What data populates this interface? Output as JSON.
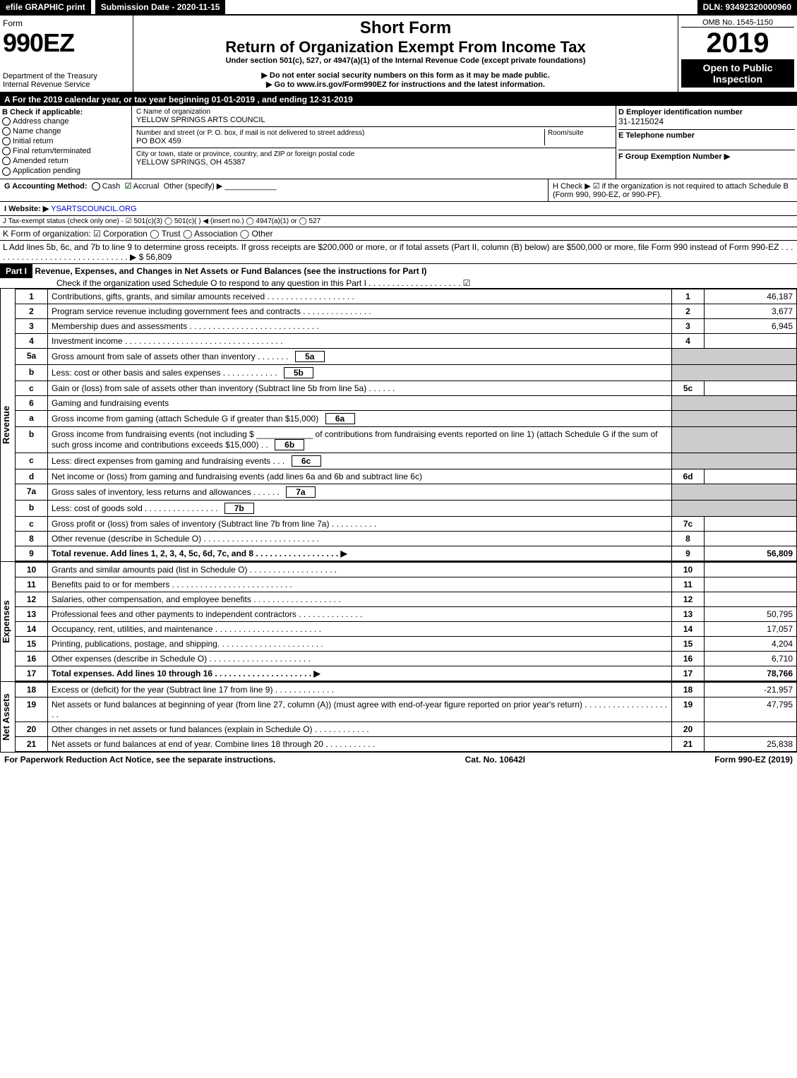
{
  "top_bar": {
    "efile": "efile GRAPHIC print",
    "submission_label": "Submission Date - 2020-11-15",
    "dln": "DLN: 93492320000960"
  },
  "header": {
    "form_word": "Form",
    "form_number": "990EZ",
    "dept": "Department of the Treasury",
    "irs": "Internal Revenue Service",
    "short_form": "Short Form",
    "title": "Return of Organization Exempt From Income Tax",
    "subtitle": "Under section 501(c), 527, or 4947(a)(1) of the Internal Revenue Code (except private foundations)",
    "warn": "▶ Do not enter social security numbers on this form as it may be made public.",
    "goto": "▶ Go to www.irs.gov/Form990EZ for instructions and the latest information.",
    "omb": "OMB No. 1545-1150",
    "year": "2019",
    "inspection": "Open to Public Inspection"
  },
  "tax_year": "A For the 2019 calendar year, or tax year beginning 01-01-2019 , and ending 12-31-2019",
  "box_b": {
    "label": "B  Check if applicable:",
    "opts": [
      "Address change",
      "Name change",
      "Initial return",
      "Final return/terminated",
      "Amended return",
      "Application pending"
    ]
  },
  "box_c": {
    "name_label": "C Name of organization",
    "name": "YELLOW SPRINGS ARTS COUNCIL",
    "addr_label": "Number and street (or P. O. box, if mail is not delivered to street address)",
    "room_label": "Room/suite",
    "addr": "PO BOX 459",
    "city_label": "City or town, state or province, country, and ZIP or foreign postal code",
    "city": "YELLOW SPRINGS, OH  45387"
  },
  "box_d": {
    "label": "D Employer identification number",
    "ein": "31-1215024",
    "e_label": "E Telephone number",
    "f_label": "F Group Exemption Number  ▶"
  },
  "row_g": {
    "g": "G Accounting Method:",
    "cash": "Cash",
    "accrual": "Accrual",
    "other": "Other (specify) ▶",
    "h": "H  Check ▶ ☑ if the organization is not required to attach Schedule B (Form 990, 990-EZ, or 990-PF)."
  },
  "row_i": {
    "label": "I Website: ▶",
    "site": "YSARTSCOUNCIL.ORG"
  },
  "row_j": "J Tax-exempt status (check only one) - ☑ 501(c)(3)  ◯ 501(c)(  ) ◀ (insert no.)  ◯ 4947(a)(1) or  ◯ 527",
  "row_k": "K Form of organization:  ☑ Corporation  ◯ Trust  ◯ Association  ◯ Other",
  "row_l": {
    "text": "L Add lines 5b, 6c, and 7b to line 9 to determine gross receipts. If gross receipts are $200,000 or more, or if total assets (Part II, column (B) below) are $500,000 or more, file Form 990 instead of Form 990-EZ  . . . . . . . . . . . . . . . . . . . . . . . . . . . . . . ▶",
    "amount": "$ 56,809"
  },
  "part1": {
    "label": "Part I",
    "title": "Revenue, Expenses, and Changes in Net Assets or Fund Balances (see the instructions for Part I)",
    "check": "Check if the organization used Schedule O to respond to any question in this Part I . . . . . . . . . . . . . . . . . . . . ☑"
  },
  "sections": {
    "revenue": "Revenue",
    "expenses": "Expenses",
    "net": "Net Assets"
  },
  "lines": [
    {
      "n": "1",
      "d": "Contributions, gifts, grants, and similar amounts received . . . . . . . . . . . . . . . . . . .",
      "r": "1",
      "v": "46,187"
    },
    {
      "n": "2",
      "d": "Program service revenue including government fees and contracts . . . . . . . . . . . . . . .",
      "r": "2",
      "v": "3,677"
    },
    {
      "n": "3",
      "d": "Membership dues and assessments . . . . . . . . . . . . . . . . . . . . . . . . . . . .",
      "r": "3",
      "v": "6,945"
    },
    {
      "n": "4",
      "d": "Investment income . . . . . . . . . . . . . . . . . . . . . . . . . . . . . . . . . .",
      "r": "4",
      "v": ""
    },
    {
      "n": "5a",
      "d": "Gross amount from sale of assets other than inventory . . . . . . .",
      "sub": "5a",
      "grey": true
    },
    {
      "n": "b",
      "d": "Less: cost or other basis and sales expenses . . . . . . . . . . . .",
      "sub": "5b",
      "grey": true
    },
    {
      "n": "c",
      "d": "Gain or (loss) from sale of assets other than inventory (Subtract line 5b from line 5a) . . . . . .",
      "r": "5c",
      "v": ""
    },
    {
      "n": "6",
      "d": "Gaming and fundraising events",
      "grey": true,
      "noamt": true
    },
    {
      "n": "a",
      "d": "Gross income from gaming (attach Schedule G if greater than $15,000)",
      "sub": "6a",
      "grey": true
    },
    {
      "n": "b",
      "d": "Gross income from fundraising events (not including $ ____________ of contributions from fundraising events reported on line 1) (attach Schedule G if the sum of such gross income and contributions exceeds $15,000)    . .",
      "sub": "6b",
      "grey": true
    },
    {
      "n": "c",
      "d": "Less: direct expenses from gaming and fundraising events     . . .",
      "sub": "6c",
      "grey": true
    },
    {
      "n": "d",
      "d": "Net income or (loss) from gaming and fundraising events (add lines 6a and 6b and subtract line 6c)",
      "r": "6d",
      "v": ""
    },
    {
      "n": "7a",
      "d": "Gross sales of inventory, less returns and allowances . . . . . .",
      "sub": "7a",
      "grey": true
    },
    {
      "n": "b",
      "d": "Less: cost of goods sold       . . . . . . . . . . . . . . . .",
      "sub": "7b",
      "grey": true
    },
    {
      "n": "c",
      "d": "Gross profit or (loss) from sales of inventory (Subtract line 7b from line 7a) . . . . . . . . . .",
      "r": "7c",
      "v": ""
    },
    {
      "n": "8",
      "d": "Other revenue (describe in Schedule O) . . . . . . . . . . . . . . . . . . . . . . . . .",
      "r": "8",
      "v": ""
    },
    {
      "n": "9",
      "d": "Total revenue. Add lines 1, 2, 3, 4, 5c, 6d, 7c, and 8  . . . . . . . . . . . . . . . . . .  ▶",
      "r": "9",
      "v": "56,809",
      "bold": true
    }
  ],
  "exp_lines": [
    {
      "n": "10",
      "d": "Grants and similar amounts paid (list in Schedule O) . . . . . . . . . . . . . . . . . . .",
      "r": "10",
      "v": ""
    },
    {
      "n": "11",
      "d": "Benefits paid to or for members    . . . . . . . . . . . . . . . . . . . . . . . . . .",
      "r": "11",
      "v": ""
    },
    {
      "n": "12",
      "d": "Salaries, other compensation, and employee benefits . . . . . . . . . . . . . . . . . . .",
      "r": "12",
      "v": ""
    },
    {
      "n": "13",
      "d": "Professional fees and other payments to independent contractors . . . . . . . . . . . . . .",
      "r": "13",
      "v": "50,795"
    },
    {
      "n": "14",
      "d": "Occupancy, rent, utilities, and maintenance . . . . . . . . . . . . . . . . . . . . . . .",
      "r": "14",
      "v": "17,057"
    },
    {
      "n": "15",
      "d": "Printing, publications, postage, and shipping. . . . . . . . . . . . . . . . . . . . . . .",
      "r": "15",
      "v": "4,204"
    },
    {
      "n": "16",
      "d": "Other expenses (describe in Schedule O)    . . . . . . . . . . . . . . . . . . . . . .",
      "r": "16",
      "v": "6,710"
    },
    {
      "n": "17",
      "d": "Total expenses. Add lines 10 through 16    . . . . . . . . . . . . . . . . . . . . .  ▶",
      "r": "17",
      "v": "78,766",
      "bold": true
    }
  ],
  "net_lines": [
    {
      "n": "18",
      "d": "Excess or (deficit) for the year (Subtract line 17 from line 9)      . . . . . . . . . . . . .",
      "r": "18",
      "v": "-21,957"
    },
    {
      "n": "19",
      "d": "Net assets or fund balances at beginning of year (from line 27, column (A)) (must agree with end-of-year figure reported on prior year's return) . . . . . . . . . . . . . . . . . . . .",
      "r": "19",
      "v": "47,795"
    },
    {
      "n": "20",
      "d": "Other changes in net assets or fund balances (explain in Schedule O) . . . . . . . . . . . .",
      "r": "20",
      "v": ""
    },
    {
      "n": "21",
      "d": "Net assets or fund balances at end of year. Combine lines 18 through 20 . . . . . . . . . . .",
      "r": "21",
      "v": "25,838"
    }
  ],
  "footer": {
    "left": "For Paperwork Reduction Act Notice, see the separate instructions.",
    "mid": "Cat. No. 10642I",
    "right": "Form 990-EZ (2019)"
  }
}
